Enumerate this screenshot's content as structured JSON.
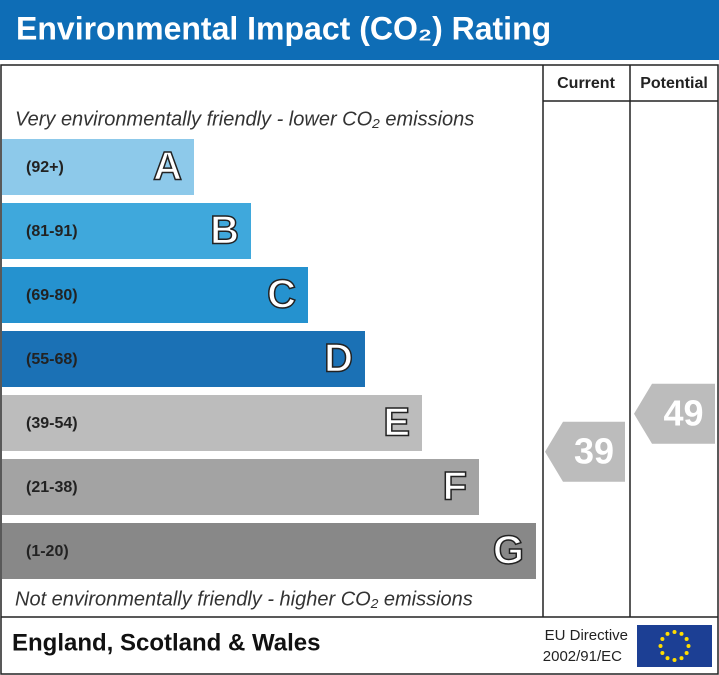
{
  "title": "Environmental Impact (CO₂) Rating",
  "columns": {
    "current": "Current",
    "potential": "Potential"
  },
  "top_note": "Very environmentally friendly - lower CO₂ emissions",
  "bottom_note": "Not environmentally friendly - higher CO₂ emissions",
  "bands": [
    {
      "range": "(92+)",
      "letter": "A",
      "color": "#8dc9ea"
    },
    {
      "range": "(81-91)",
      "letter": "B",
      "color": "#3fa8dc"
    },
    {
      "range": "(69-80)",
      "letter": "C",
      "color": "#2592cf"
    },
    {
      "range": "(55-68)",
      "letter": "D",
      "color": "#1b71b5"
    },
    {
      "range": "(39-54)",
      "letter": "E",
      "color": "#bcbcbc"
    },
    {
      "range": "(21-38)",
      "letter": "F",
      "color": "#a3a3a3"
    },
    {
      "range": "(1-20)",
      "letter": "G",
      "color": "#888888"
    }
  ],
  "current": {
    "value": 39,
    "color": "#bcbcbc"
  },
  "potential": {
    "value": 49,
    "color": "#bcbcbc"
  },
  "footer": {
    "region": "England, Scotland & Wales",
    "directive_line1": "EU Directive",
    "directive_line2": "2002/91/EC"
  }
}
